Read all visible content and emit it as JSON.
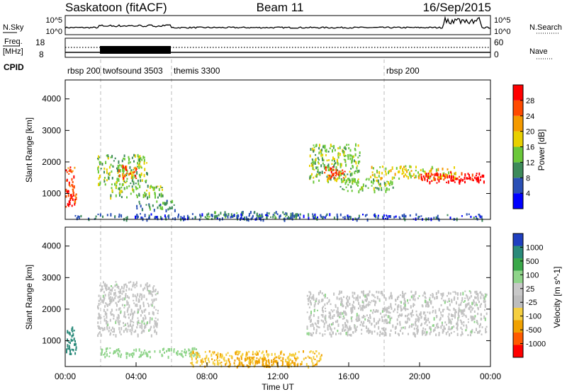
{
  "header": {
    "station": "Saskatoon (fitACF)",
    "beam": "Beam 11",
    "date": "16/Sep/2015"
  },
  "top_panels": {
    "noise_left_label": "N.Sky",
    "noise_right_label": "N.Search",
    "noise_left_ticks": [
      "10^5",
      "10^0"
    ],
    "noise_right_ticks": [
      "10^5",
      "10^0"
    ],
    "freq_label_1": "Freq.",
    "freq_label_2": "[MHz]",
    "freq_ticks": [
      "18",
      "8"
    ],
    "nave_label": "Nave",
    "nave_ticks": [
      "60",
      "0"
    ],
    "cpid_label": "CPID"
  },
  "cpid_segments": [
    {
      "label": "rbsp 200",
      "start_hour": 0
    },
    {
      "label": "twofsound 3503",
      "start_hour": 2
    },
    {
      "label": "themis 3300",
      "start_hour": 6
    },
    {
      "label": "rbsp 200",
      "start_hour": 18
    }
  ],
  "chart_data": [
    {
      "type": "heatmap",
      "name": "power",
      "ylabel": "Slant Range [km]",
      "yticks": [
        1000,
        2000,
        3000,
        4000
      ],
      "ylim": [
        180,
        4600
      ],
      "xlim": [
        0,
        24
      ],
      "colorbar_label": "Power [dB]",
      "colorbar_ticks": [
        "28",
        "24",
        "20",
        "16",
        "12",
        "8",
        "4"
      ],
      "colorbar_colors": [
        "#0000ff",
        "#2a4fb5",
        "#3d8a5a",
        "#6bc83a",
        "#e8d000",
        "#f49a00",
        "#ff4a00",
        "#ff0000"
      ],
      "bands": [
        {
          "x0": 0.0,
          "x1": 0.6,
          "y0": 600,
          "y1": 1900,
          "level": 6
        },
        {
          "x0": 0.1,
          "x1": 0.5,
          "y0": 650,
          "y1": 1000,
          "level": 7
        },
        {
          "x0": 1.8,
          "x1": 4.6,
          "y0": 1300,
          "y1": 2250,
          "level": 3
        },
        {
          "x0": 3.0,
          "x1": 4.0,
          "y0": 1500,
          "y1": 1900,
          "level": 6
        },
        {
          "x0": 2.5,
          "x1": 5.5,
          "y0": 900,
          "y1": 1300,
          "level": 3
        },
        {
          "x0": 4.0,
          "x1": 6.2,
          "y0": 500,
          "y1": 800,
          "level": 2
        },
        {
          "x0": 13.7,
          "x1": 16.6,
          "y0": 1400,
          "y1": 2600,
          "level": 3
        },
        {
          "x0": 14.6,
          "x1": 15.8,
          "y0": 1500,
          "y1": 1900,
          "level": 6
        },
        {
          "x0": 15.5,
          "x1": 18.5,
          "y0": 1100,
          "y1": 1500,
          "level": 3
        },
        {
          "x0": 17.2,
          "x1": 22.0,
          "y0": 1500,
          "y1": 1900,
          "level": 4
        },
        {
          "x0": 20.0,
          "x1": 23.4,
          "y0": 1350,
          "y1": 1700,
          "level": 7
        },
        {
          "x0": 22.2,
          "x1": 23.6,
          "y0": 1400,
          "y1": 1600,
          "level": 8
        },
        {
          "x0": 7.8,
          "x1": 13.0,
          "y0": 200,
          "y1": 450,
          "level": 2
        },
        {
          "x0": 0.5,
          "x1": 23.5,
          "y0": 200,
          "y1": 380,
          "level": 1
        }
      ]
    },
    {
      "type": "heatmap",
      "name": "velocity",
      "xlabel": "Time UT",
      "ylabel": "Slant Range [km]",
      "yticks": [
        1000,
        2000,
        3000,
        4000
      ],
      "ylim": [
        180,
        4600
      ],
      "xlim": [
        0,
        24
      ],
      "xticks": [
        "00:00",
        "04:00",
        "08:00",
        "12:00",
        "16:00",
        "20:00",
        "00:00"
      ],
      "colorbar_label": "Velocity [m s^-1]",
      "colorbar_ticks": [
        "1000",
        "500",
        "100",
        "25",
        "-25",
        "-100",
        "-500",
        "-1000"
      ],
      "colorbar_colors": [
        "#ff0000",
        "#ff5a00",
        "#f0a000",
        "#f5cf40",
        "#bdbdbd",
        "#c8c8c8",
        "#8fd48a",
        "#3aa84a",
        "#2a8a7a",
        "#1f3fc0"
      ],
      "bands": [
        {
          "x0": 0.0,
          "x1": 0.6,
          "y0": 600,
          "y1": 1500,
          "level": "teal"
        },
        {
          "x0": 1.8,
          "x1": 5.2,
          "y0": 1200,
          "y1": 2900,
          "level": "grey"
        },
        {
          "x0": 13.6,
          "x1": 23.8,
          "y0": 1200,
          "y1": 2600,
          "level": "grey"
        },
        {
          "x0": 2.0,
          "x1": 7.5,
          "y0": 500,
          "y1": 800,
          "level": "green"
        },
        {
          "x0": 7.0,
          "x1": 14.5,
          "y0": 200,
          "y1": 700,
          "level": "yellow"
        },
        {
          "x0": 9.0,
          "x1": 13.0,
          "y0": 200,
          "y1": 500,
          "level": "orange"
        }
      ]
    }
  ]
}
